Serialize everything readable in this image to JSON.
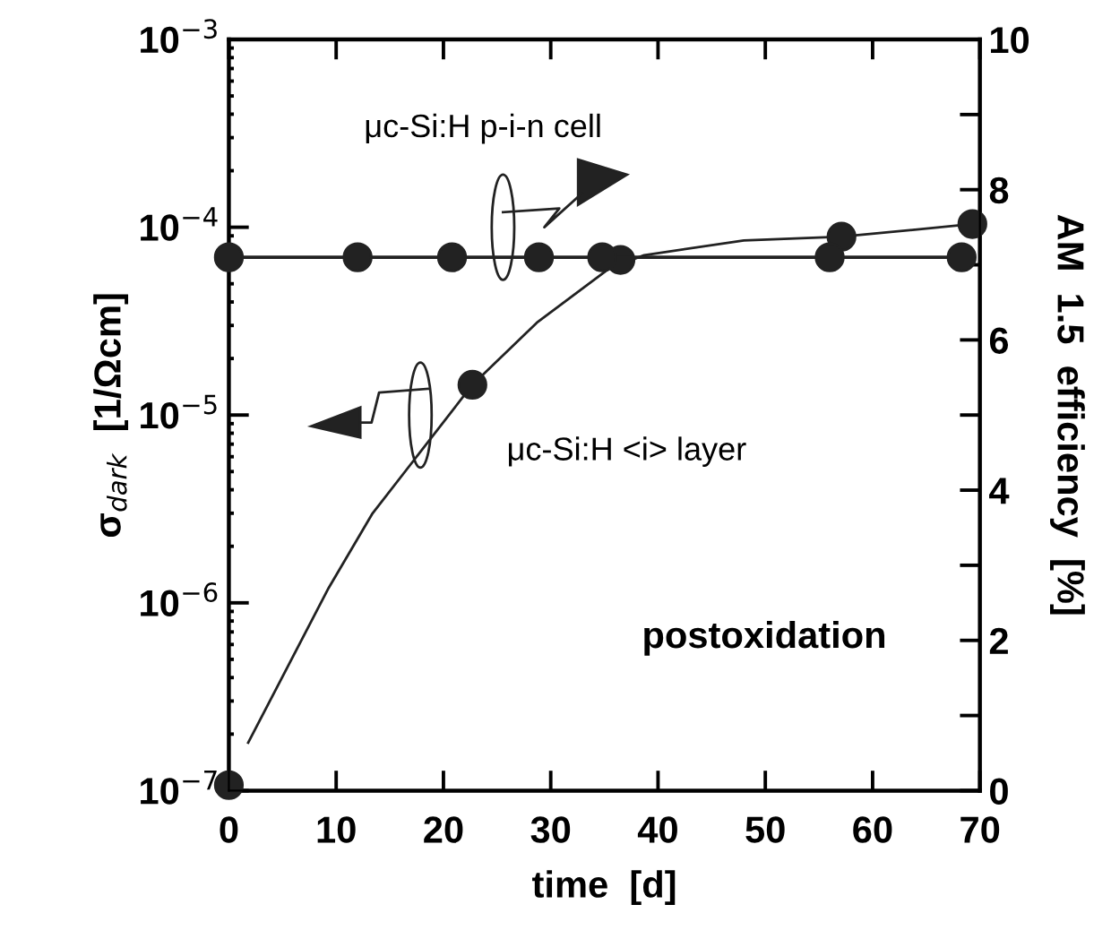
{
  "chart_data": {
    "type": "line",
    "xlabel": "time  [d]",
    "ylabel": "σ$_{dark}$  [1/Ωcm]",
    "y2label": "AM  1.5  efficiency  [%]",
    "annotations": [
      "μc-Si:H p-i-n cell",
      "μc-Si:H <i> layer",
      "postoxidation"
    ],
    "log": "y",
    "grid": false,
    "xlim": [
      0,
      70
    ],
    "xticks": [
      0,
      10,
      20,
      30,
      40,
      50,
      60,
      70
    ],
    "ylim": [
      1e-07,
      0.001
    ],
    "yticks": [
      {
        "value": 1e-07,
        "label": "10$^{−7}$"
      },
      {
        "value": 1e-06,
        "label": "10$^{−6}$"
      },
      {
        "value": 1e-05,
        "label": "10$^{−5}$"
      },
      {
        "value": 0.0001,
        "label": "10$^{−4}$"
      },
      {
        "value": 0.001,
        "label": "10$^{−3}$"
      }
    ],
    "y2lim": [
      0,
      10
    ],
    "y2ticks": [
      0,
      {
        "value": 1,
        "label": null
      },
      2,
      {
        "value": 3,
        "label": null
      },
      4,
      {
        "value": 5,
        "label": null
      },
      6,
      {
        "value": 7,
        "label": null
      },
      8,
      {
        "value": 9,
        "label": null
      },
      10
    ],
    "series": [
      {
        "axis": "y2",
        "marker": "circle",
        "line_style": "solid",
        "color": "#222222",
        "x": [
          0,
          12,
          20.8,
          28.9,
          34.8,
          56,
          68.3
        ],
        "values": [
          7.1,
          7.1,
          7.1,
          7.1,
          7.1,
          7.1,
          7.1
        ]
      },
      {
        "axis": "y",
        "marker": "none",
        "line_style": "solid",
        "color": "#222222",
        "x": [
          1.8,
          9.3,
          13.4,
          17.4,
          22.7,
          28.7,
          35.4,
          38.7,
          48,
          57.1,
          69.3
        ],
        "values": [
          1.8e-07,
          1.2e-06,
          3e-06,
          5.9e-06,
          1.45e-05,
          3.1e-05,
          6e-05,
          7.1e-05,
          8.5e-05,
          8.9e-05,
          0.000104
        ]
      },
      {
        "type": "scatter",
        "axis": "y",
        "marker": "circle",
        "color": "#222222",
        "x": [
          0,
          22.7,
          36.5,
          57.1,
          69.3
        ],
        "values": [
          1.07e-07,
          1.45e-05,
          6.7e-05,
          8.9e-05,
          0.000104
        ]
      }
    ]
  }
}
